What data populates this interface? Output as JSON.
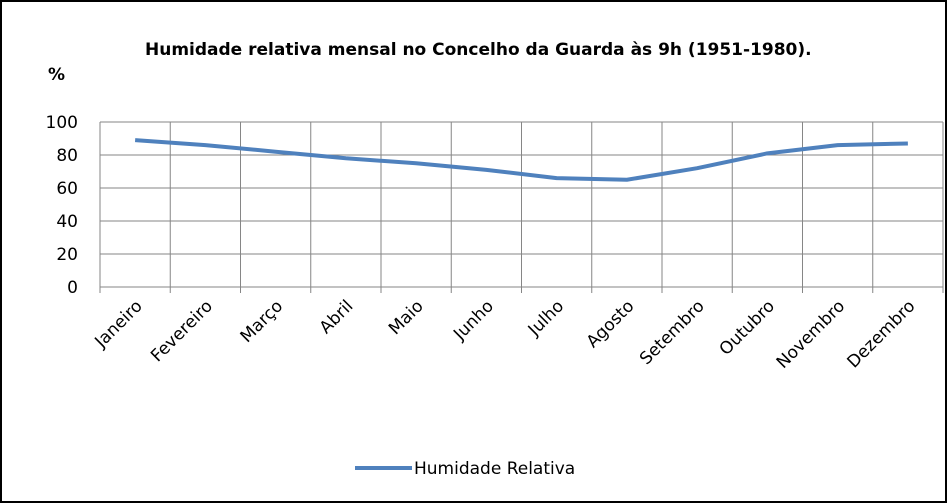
{
  "chart_data": {
    "type": "line",
    "title": "Humidade relativa mensal no Concelho da Guarda às 9h (1951-1980).",
    "y_label": "%",
    "categories": [
      "Janeiro",
      "Fevereiro",
      "Março",
      "Abril",
      "Maio",
      "Junho",
      "Julho",
      "Agosto",
      "Setembro",
      "Outubro",
      "Novembro",
      "Dezembro"
    ],
    "series": [
      {
        "name": "Humidade Relativa",
        "color": "#4f81bd",
        "values": [
          89,
          86,
          82,
          78,
          75,
          71,
          66,
          65,
          72,
          81,
          86,
          87
        ]
      }
    ],
    "ylim": [
      0,
      100
    ],
    "yticks": [
      0,
      20,
      40,
      60,
      80,
      100
    ],
    "grid": true,
    "legend": "bottom"
  }
}
